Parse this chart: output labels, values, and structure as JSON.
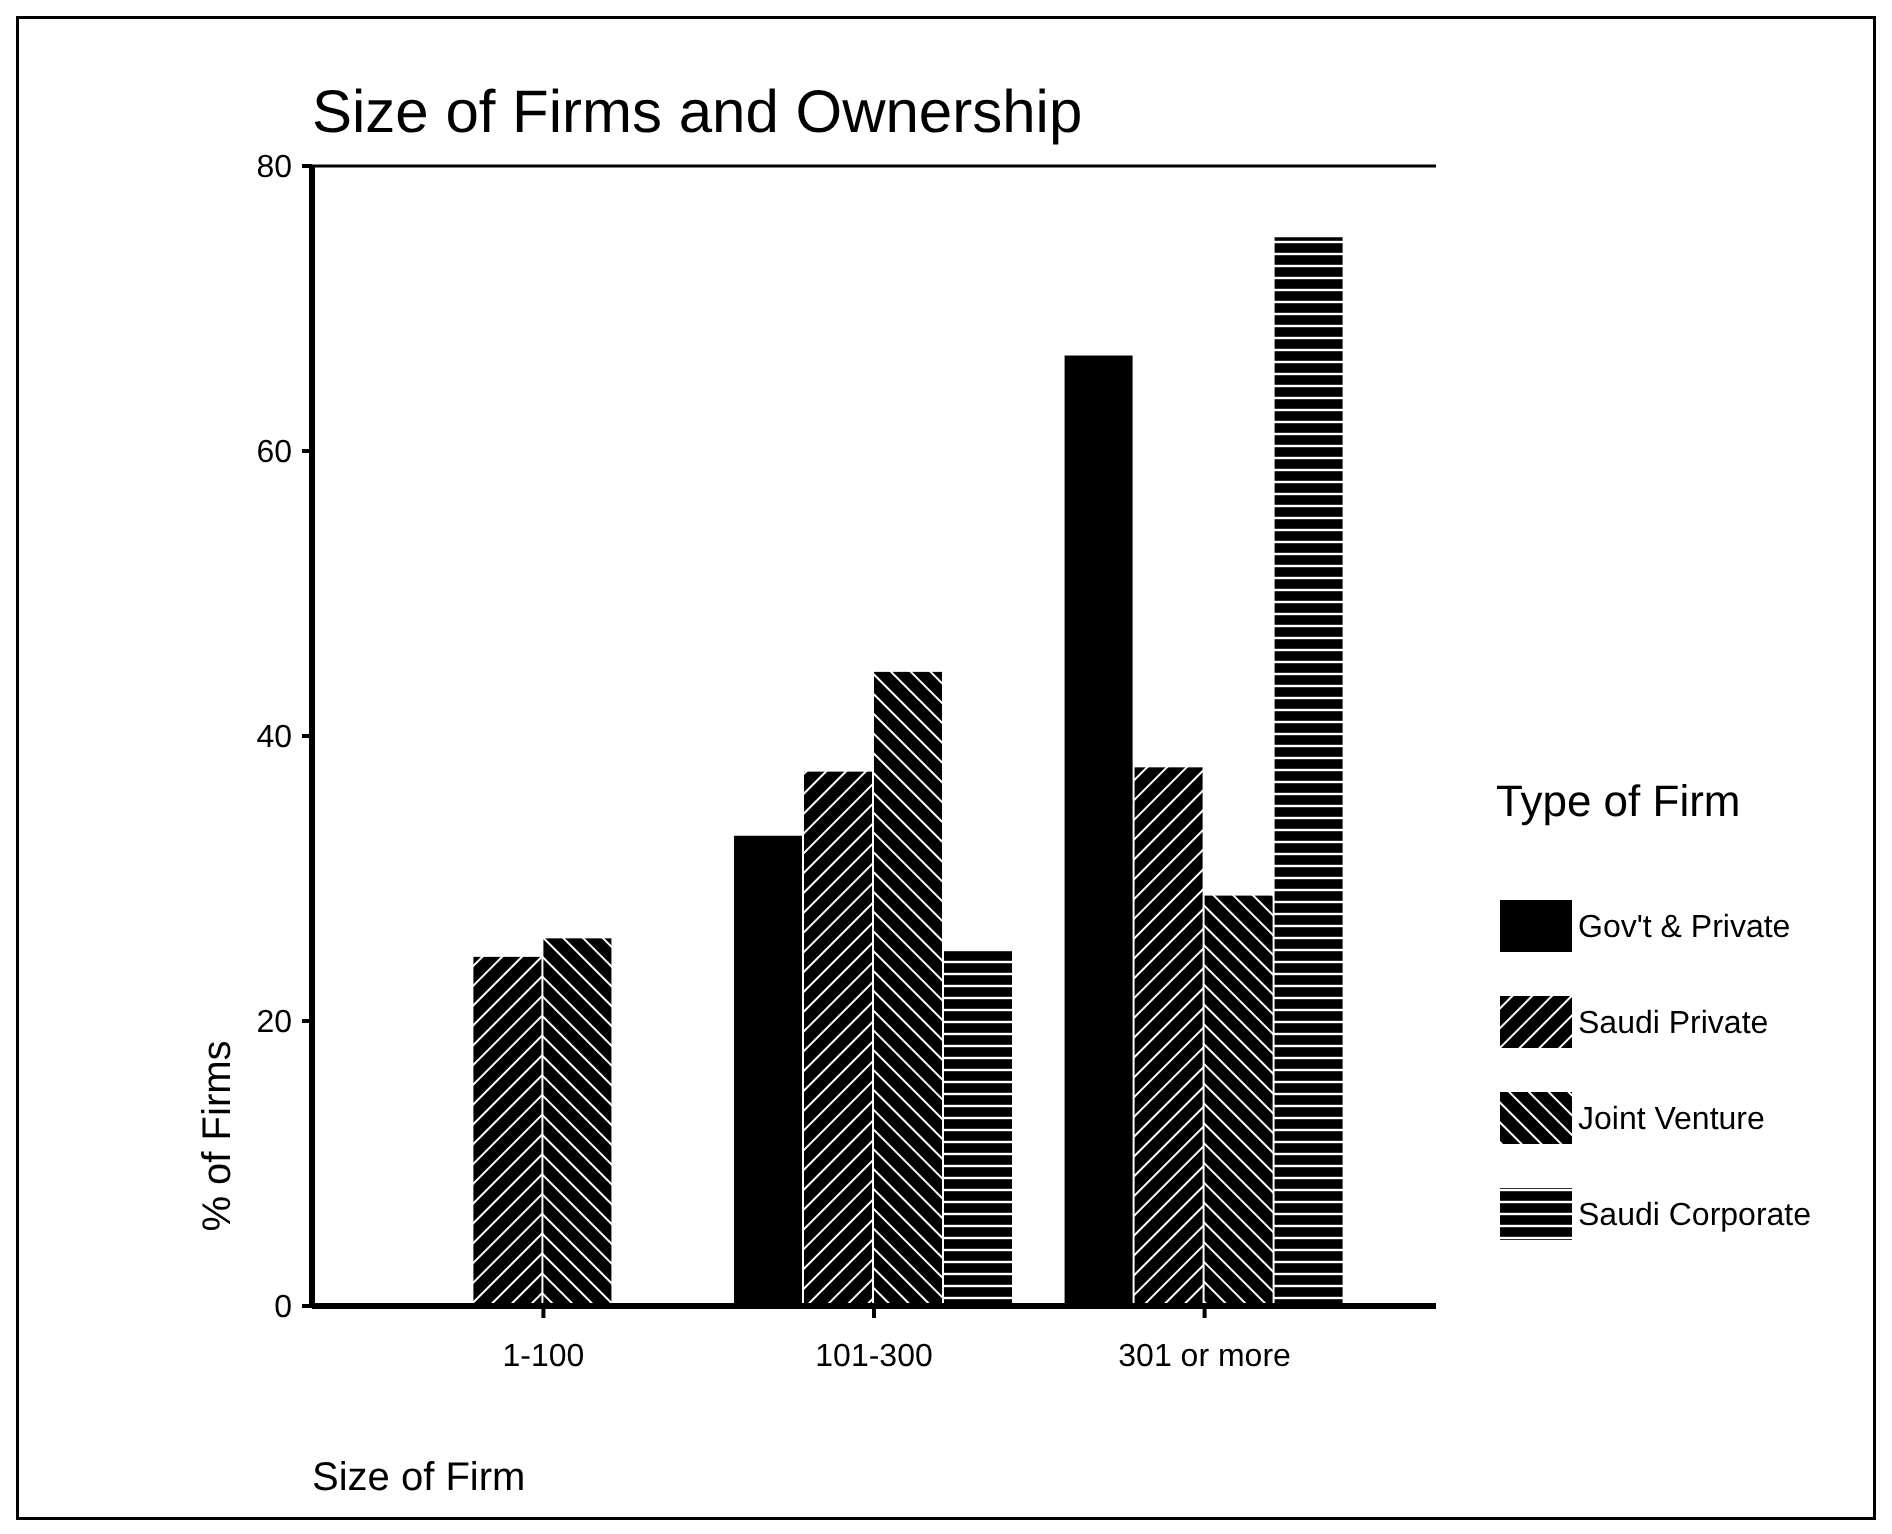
{
  "chart_data": {
    "type": "bar",
    "title": "Size of Firms and Ownership",
    "xlabel": "Size of Firm",
    "ylabel": "% of Firms",
    "legend_title": "Type of Firm",
    "categories": [
      "1-100",
      "101-300",
      "301 or more"
    ],
    "series": [
      {
        "name": "Gov't & Private",
        "color": "#000000",
        "values": [
          0,
          33,
          66.7
        ]
      },
      {
        "name": "Saudi Private",
        "color": "#000000",
        "values": [
          24.5,
          37.5,
          37.8
        ]
      },
      {
        "name": "Joint Venture",
        "color": "#000000",
        "values": [
          25.8,
          44.5,
          28.8
        ]
      },
      {
        "name": "Saudi Corporate",
        "color": "#000000",
        "values": [
          0,
          25,
          75
        ]
      }
    ],
    "ylim": [
      0,
      80
    ],
    "yticks": [
      0,
      20,
      40,
      60,
      80
    ],
    "grid": false,
    "legend": "right"
  }
}
